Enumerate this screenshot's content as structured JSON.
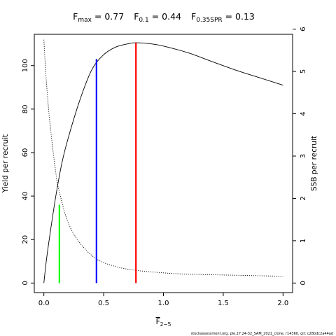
{
  "chart_data": {
    "type": "line",
    "title_parts": [
      {
        "base": "F",
        "sub": "max",
        "value": "= 0.77"
      },
      {
        "base": "F",
        "sub": "0.1",
        "value": "= 0.44"
      },
      {
        "base": "F",
        "sub": "0.35SPR",
        "value": "= 0.13"
      }
    ],
    "xlabel": {
      "base": "F",
      "sub": "2−5",
      "overline": true
    },
    "ylabel_left": "Yield per recruit",
    "ylabel_right": "SSB per recruit",
    "xlim": [
      -0.08,
      2.08
    ],
    "ylim_left": [
      -4.4,
      114.4
    ],
    "ylim_right": [
      -0.226,
      5.878
    ],
    "x_ticks": [
      0,
      0.5,
      1,
      1.5,
      2
    ],
    "x_tick_labels": [
      "0.0",
      "0.5",
      "1.0",
      "1.5",
      "2.0"
    ],
    "y_left_ticks": [
      0,
      20,
      40,
      60,
      80,
      100
    ],
    "y_left_tick_labels": [
      "0",
      "20",
      "40",
      "60",
      "80",
      "100"
    ],
    "y_right_ticks": [
      0,
      1,
      2,
      3,
      4,
      5,
      6
    ],
    "y_right_tick_labels": [
      "0",
      "1",
      "2",
      "3",
      "4",
      "5",
      "6"
    ],
    "grid": false,
    "series": [
      {
        "axis": "left",
        "style": "solid",
        "x": [
          0,
          0.02,
          0.05,
          0.1,
          0.15,
          0.2,
          0.3,
          0.4,
          0.5,
          0.6,
          0.7,
          0.77,
          0.9,
          1.0,
          1.2,
          1.4,
          1.6,
          1.8,
          2.0
        ],
        "y": [
          0,
          10,
          22,
          40,
          55,
          66,
          84,
          98,
          105,
          108.5,
          110,
          110.5,
          110,
          109,
          106,
          102,
          98,
          94.5,
          91
        ]
      },
      {
        "axis": "right",
        "style": "dotted",
        "x": [
          0,
          0.02,
          0.05,
          0.1,
          0.13,
          0.2,
          0.3,
          0.44,
          0.6,
          0.77,
          1.0,
          1.2,
          1.5,
          2.0
        ],
        "y": [
          5.75,
          4.8,
          3.8,
          2.6,
          2.15,
          1.45,
          0.95,
          0.57,
          0.39,
          0.3,
          0.24,
          0.21,
          0.19,
          0.16
        ]
      }
    ],
    "reference_lines": [
      {
        "x": 0.13,
        "y_end": 36,
        "color": "#00ff00"
      },
      {
        "x": 0.44,
        "y_end": 103,
        "color": "#0000ff"
      },
      {
        "x": 0.77,
        "y_end": 110.5,
        "color": "#ff0000"
      }
    ]
  },
  "footer": "stockassessment.org, ple.27.24-32_SAM_2021_clone, r14360, git: c28bdc2a44ad"
}
